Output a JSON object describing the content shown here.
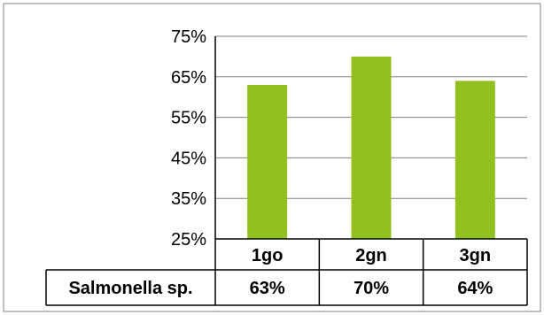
{
  "chart_data": {
    "type": "bar",
    "categories": [
      "1go",
      "2gn",
      "3gn"
    ],
    "series": [
      {
        "name": "Salmonella sp.",
        "values": [
          63,
          70,
          64
        ]
      }
    ],
    "value_labels": [
      "63%",
      "70%",
      "64%"
    ],
    "ylim": [
      25,
      75
    ],
    "yticks": [
      25,
      35,
      45,
      55,
      65,
      75
    ],
    "ytick_labels": [
      "25%",
      "35%",
      "45%",
      "55%",
      "65%",
      "75%"
    ],
    "grid": true,
    "legend": "data-table",
    "colors": {
      "bar": "#92c01f",
      "grid": "#808080",
      "border": "#000000"
    },
    "title": "",
    "xlabel": "",
    "ylabel": ""
  }
}
